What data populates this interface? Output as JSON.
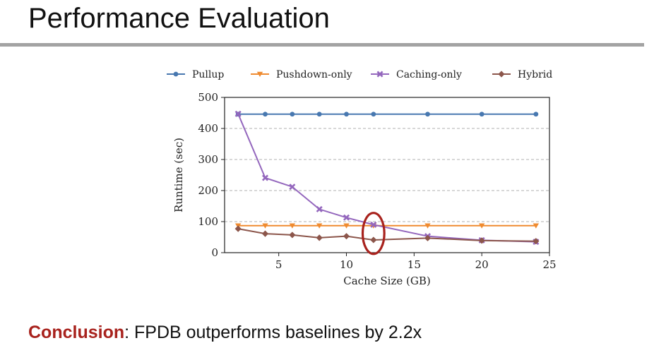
{
  "slide": {
    "title": "Performance Evaluation",
    "conclusion_label": "Conclusion",
    "conclusion_text": ": FPDB outperforms baselines by 2.2x"
  },
  "colors": {
    "highlight_ellipse": "#a8221d",
    "conclusion_label": "#a8221d",
    "title_rule": "#a3a3a3"
  },
  "chart_data": {
    "type": "line",
    "title": "",
    "xlabel": "Cache Size (GB)",
    "ylabel": "Runtime (sec)",
    "xlim": [
      1,
      25
    ],
    "ylim": [
      0,
      500
    ],
    "xticks": [
      5,
      10,
      15,
      20,
      25
    ],
    "yticks": [
      0,
      100,
      200,
      300,
      400,
      500
    ],
    "grid": "horizontal dashed",
    "legend_position": "top",
    "series": [
      {
        "name": "Pullup",
        "color": "#4878b0",
        "marker": "circle",
        "x": [
          2,
          4,
          6,
          8,
          10,
          12,
          16,
          20,
          24
        ],
        "y": [
          446,
          446,
          446,
          446,
          446,
          446,
          446,
          446,
          446
        ]
      },
      {
        "name": "Pushdown-only",
        "color": "#ef8b30",
        "marker": "triangle-down",
        "x": [
          2,
          4,
          6,
          8,
          10,
          12,
          16,
          20,
          24
        ],
        "y": [
          87,
          87,
          87,
          87,
          87,
          87,
          87,
          87,
          87
        ]
      },
      {
        "name": "Caching-only",
        "color": "#9467bd",
        "marker": "x",
        "x": [
          2,
          4,
          6,
          8,
          10,
          12,
          16,
          20,
          24
        ],
        "y": [
          447,
          241,
          212,
          140,
          113,
          90,
          53,
          40,
          35
        ]
      },
      {
        "name": "Hybrid",
        "color": "#8c564b",
        "marker": "diamond",
        "x": [
          2,
          4,
          6,
          8,
          10,
          12,
          16,
          20,
          24
        ],
        "y": [
          77,
          61,
          57,
          48,
          53,
          41,
          47,
          39,
          37
        ]
      }
    ],
    "highlight": {
      "x": 12,
      "y": 62,
      "rx_data": 0.8,
      "ry_data": 66
    }
  }
}
